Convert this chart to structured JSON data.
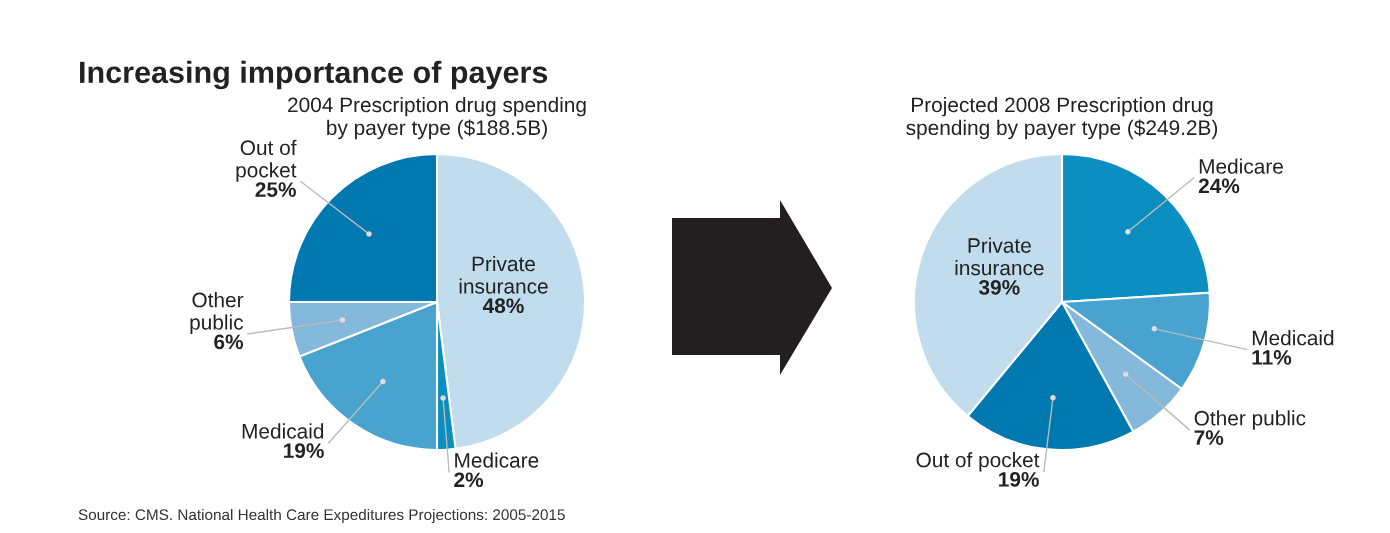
{
  "chart_data": [
    {
      "type": "pie",
      "title": "Increasing importance of payers",
      "subtitle": "2004 Prescription drug spending\nby payer type ($188.5B)",
      "categories": [
        "Private\ninsurance",
        "Medicare",
        "Medicaid",
        "Other\npublic",
        "Out of\npocket"
      ],
      "values": [
        48,
        2,
        19,
        6,
        25
      ],
      "colors": [
        "#c0dced",
        "#0a8fc0",
        "#48a3cf",
        "#85b9dc",
        "#0078b0"
      ],
      "value_labels": [
        "48%",
        "2%",
        "19%",
        "6%",
        "25%"
      ],
      "annotations": [
        "Source: CMS. National Health Care Expeditures Projections: 2005-2015"
      ]
    },
    {
      "type": "pie",
      "title": "Projected 2008 Prescription drug\nspending by payer type ($249.2B)",
      "categories": [
        "Medicare",
        "Medicaid",
        "Other public",
        "Out of pocket",
        "Private\ninsurance"
      ],
      "values": [
        24,
        11,
        7,
        19,
        39
      ],
      "colors": [
        "#0a8fc0",
        "#48a3cf",
        "#85b9dc",
        "#0078b0",
        "#c0dced"
      ],
      "value_labels": [
        "24%",
        "11%",
        "7%",
        "19%",
        "39%"
      ]
    }
  ]
}
